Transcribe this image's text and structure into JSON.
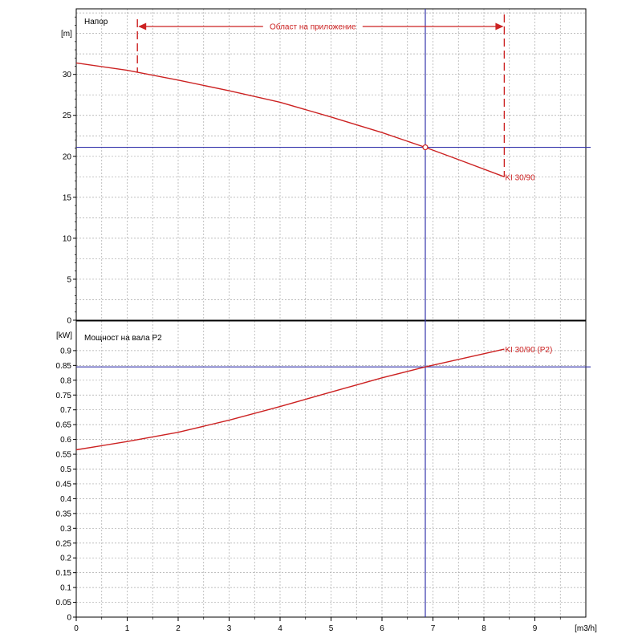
{
  "chart_data": [
    {
      "type": "line",
      "panel_label": "Напор",
      "ylabel": "[m]",
      "xlabel": "[m3/h]",
      "xlim": [
        0,
        10
      ],
      "ylim": [
        0,
        38
      ],
      "y_ticks": [
        0,
        5,
        10,
        15,
        20,
        25,
        30
      ],
      "x_ticks": [
        0,
        1,
        2,
        3,
        4,
        5,
        6,
        7,
        8,
        9
      ],
      "grid": true,
      "series": [
        {
          "name": "KI 30/90",
          "x": [
            0,
            1,
            2,
            3,
            4,
            5,
            6,
            6.85,
            7.5,
            8.4
          ],
          "values": [
            31.4,
            30.5,
            29.3,
            28.0,
            26.6,
            24.8,
            22.9,
            21.1,
            19.6,
            17.5
          ]
        }
      ],
      "application_range": {
        "label": "Област на приложение",
        "x_start": 1.2,
        "x_end": 8.4
      },
      "operating_point": {
        "x": 6.85,
        "y": 21.1
      },
      "colors": {
        "curve": "#cc2222",
        "crosshair": "#3333aa",
        "grid": "#a8a8a8"
      }
    },
    {
      "type": "line",
      "panel_label": "Мощност на вала P2",
      "ylabel": "[kW]",
      "xlabel": "[m3/h]",
      "xlim": [
        0,
        10
      ],
      "ylim": [
        0,
        1.0
      ],
      "y_ticks": [
        0,
        0.05,
        0.1,
        0.15,
        0.2,
        0.25,
        0.3,
        0.35,
        0.4,
        0.45,
        0.5,
        0.55,
        0.6,
        0.65,
        0.7,
        0.75,
        0.8,
        0.85,
        0.9
      ],
      "x_ticks": [
        0,
        1,
        2,
        3,
        4,
        5,
        6,
        7,
        8,
        9
      ],
      "grid": true,
      "series": [
        {
          "name": "KI 30/90 (P2)",
          "x": [
            0,
            1,
            2,
            3,
            4,
            5,
            6,
            6.85,
            8.4
          ],
          "values": [
            0.565,
            0.593,
            0.624,
            0.665,
            0.711,
            0.76,
            0.808,
            0.845,
            0.905
          ]
        }
      ],
      "operating_point": {
        "x": 6.85,
        "y": 0.845
      },
      "colors": {
        "curve": "#cc2222",
        "crosshair": "#3333aa",
        "grid": "#a8a8a8"
      }
    }
  ]
}
